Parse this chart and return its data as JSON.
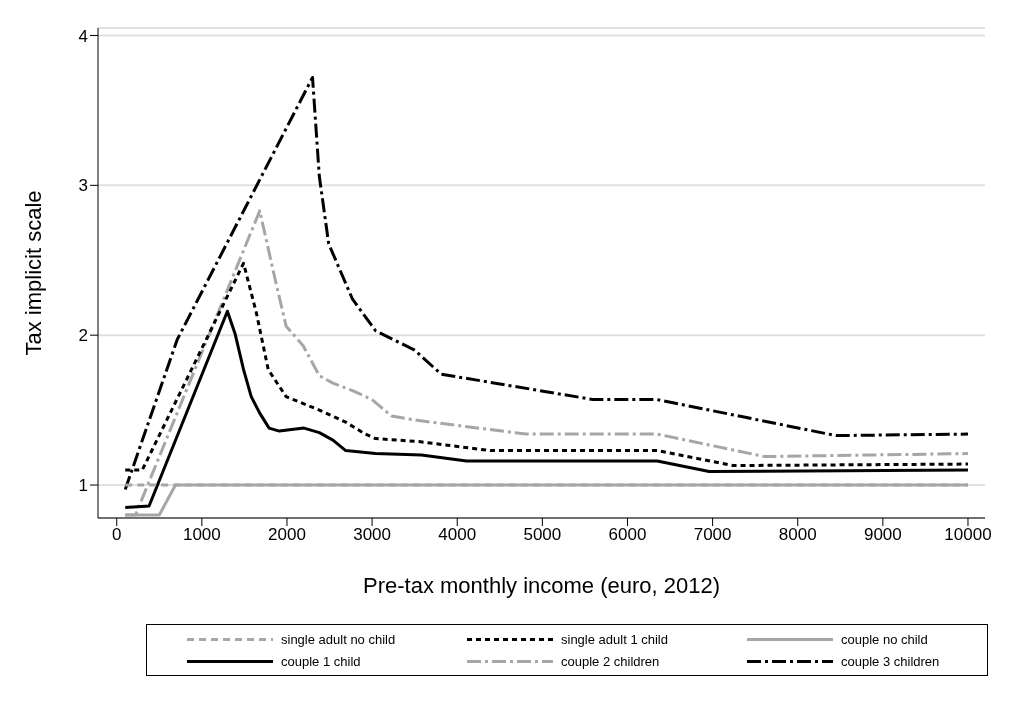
{
  "chart_data": {
    "type": "line",
    "xlabel": "Pre-tax monthly income (euro, 2012)",
    "ylabel": "Tax implicit scale",
    "xlim": [
      -220,
      10200
    ],
    "ylim": [
      0.78,
      4.05
    ],
    "xticks": [
      0,
      1000,
      2000,
      3000,
      4000,
      5000,
      6000,
      7000,
      8000,
      9000,
      10000
    ],
    "yticks": [
      1,
      2,
      3,
      4
    ],
    "grid": "y",
    "legend": "bottom",
    "marker": "none",
    "series": [
      {
        "name": "single adult no child",
        "color": "#a6a6a6",
        "line_style": "dashed",
        "x": [
          100,
          10000
        ],
        "values": [
          1,
          1
        ]
      },
      {
        "name": "single adult 1 child",
        "color": "#000000",
        "line_style": "dotted",
        "x": [
          100,
          300,
          1490,
          1640,
          1780,
          1990,
          2380,
          2690,
          2920,
          3040,
          3550,
          4390,
          6350,
          7240,
          10000
        ],
        "values": [
          1.1,
          1.1,
          2.48,
          2.15,
          1.77,
          1.59,
          1.5,
          1.42,
          1.34,
          1.31,
          1.29,
          1.23,
          1.23,
          1.13,
          1.14
        ]
      },
      {
        "name": "couple no child",
        "color": "#a6a6a6",
        "line_style": "solid",
        "x": [
          100,
          500,
          690,
          10000
        ],
        "values": [
          0.8,
          0.8,
          1,
          1
        ]
      },
      {
        "name": "couple 1 child",
        "color": "#000000",
        "line_style": "solid",
        "x": [
          100,
          380,
          1300,
          1390,
          1490,
          1580,
          1680,
          1790,
          1910,
          2200,
          2380,
          2540,
          2690,
          3040,
          3580,
          4110,
          6350,
          6960,
          10000
        ],
        "values": [
          0.85,
          0.86,
          2.16,
          2.01,
          1.77,
          1.59,
          1.48,
          1.38,
          1.36,
          1.38,
          1.35,
          1.3,
          1.23,
          1.21,
          1.2,
          1.16,
          1.16,
          1.09,
          1.1
        ]
      },
      {
        "name": "couple 2 children",
        "color": "#a6a6a6",
        "line_style": "dashdot",
        "x": [
          100,
          220,
          1680,
          1870,
          1990,
          2190,
          2380,
          2540,
          2770,
          3000,
          3230,
          3550,
          4810,
          6350,
          7610,
          10000
        ],
        "values": [
          0.8,
          0.8,
          2.83,
          2.35,
          2.06,
          1.93,
          1.73,
          1.68,
          1.63,
          1.57,
          1.46,
          1.43,
          1.34,
          1.34,
          1.19,
          1.21
        ]
      },
      {
        "name": "couple 3 children",
        "color": "#000000",
        "line_style": "dashdot",
        "x": [
          100,
          710,
          2300,
          2380,
          2490,
          2770,
          3040,
          3500,
          3810,
          5600,
          6350,
          8450,
          10000
        ],
        "values": [
          0.97,
          1.97,
          3.72,
          3.06,
          2.61,
          2.24,
          2.03,
          1.9,
          1.74,
          1.57,
          1.57,
          1.33,
          1.34
        ]
      }
    ]
  }
}
